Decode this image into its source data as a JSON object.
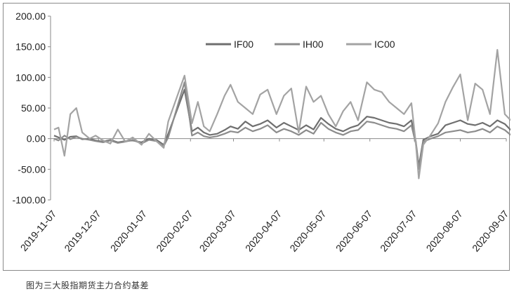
{
  "caption": "图为三大股指期货主力合约基差",
  "chart_data": {
    "type": "line",
    "title": "",
    "xlabel": "",
    "ylabel": "",
    "ylim": [
      -100,
      200
    ],
    "y_ticks": [
      "200.00",
      "150.00",
      "100.00",
      "50.00",
      "0.00",
      "-50.00",
      "-100.00"
    ],
    "x_ticks": [
      "2019-11-07",
      "2019-12-07",
      "2020-01-07",
      "2020-02-07",
      "2020-03-07",
      "2020-04-07",
      "2020-05-07",
      "2020-06-07",
      "2020-07-07",
      "2020-08-07",
      "2020-09-07"
    ],
    "grid": false,
    "legend_position": "top-center",
    "colors": {
      "IF00": "#6f6f6f",
      "IH00": "#8c8c8c",
      "IC00": "#a3a3a3",
      "axis": "#8a8a8a",
      "text": "#222222"
    },
    "series": [
      {
        "name": "IF00",
        "x": [
          "2019-11-07",
          "2019-11-10",
          "2019-11-14",
          "2019-11-18",
          "2019-11-22",
          "2019-11-26",
          "2019-12-01",
          "2019-12-05",
          "2019-12-10",
          "2019-12-15",
          "2019-12-20",
          "2019-12-25",
          "2019-12-30",
          "2020-01-05",
          "2020-01-10",
          "2020-01-15",
          "2020-01-20",
          "2020-01-23",
          "2020-02-03",
          "2020-02-08",
          "2020-02-12",
          "2020-02-16",
          "2020-02-20",
          "2020-02-25",
          "2020-03-01",
          "2020-03-05",
          "2020-03-10",
          "2020-03-15",
          "2020-03-20",
          "2020-03-25",
          "2020-03-30",
          "2020-04-05",
          "2020-04-10",
          "2020-04-15",
          "2020-04-20",
          "2020-04-25",
          "2020-04-30",
          "2020-05-05",
          "2020-05-10",
          "2020-05-15",
          "2020-05-20",
          "2020-05-25",
          "2020-05-30",
          "2020-06-05",
          "2020-06-10",
          "2020-06-15",
          "2020-06-20",
          "2020-06-25",
          "2020-06-30",
          "2020-07-05",
          "2020-07-08",
          "2020-07-10",
          "2020-07-13",
          "2020-07-18",
          "2020-07-23",
          "2020-07-28",
          "2020-08-02",
          "2020-08-07",
          "2020-08-12",
          "2020-08-17",
          "2020-08-22",
          "2020-08-27",
          "2020-09-01",
          "2020-09-06",
          "2020-09-10"
        ],
        "values": [
          5,
          2,
          -2,
          3,
          4,
          -1,
          0,
          -3,
          -5,
          -2,
          -6,
          -4,
          -3,
          -6,
          0,
          -2,
          -10,
          8,
          80,
          12,
          18,
          10,
          6,
          8,
          14,
          20,
          16,
          28,
          20,
          24,
          30,
          18,
          26,
          20,
          14,
          22,
          15,
          34,
          24,
          16,
          12,
          18,
          22,
          36,
          34,
          30,
          26,
          24,
          20,
          30,
          -5,
          -45,
          -2,
          4,
          8,
          22,
          26,
          30,
          24,
          22,
          26,
          20,
          30,
          24,
          14
        ]
      },
      {
        "name": "IH00",
        "x": [
          "2019-11-07",
          "2019-11-10",
          "2019-11-14",
          "2019-11-18",
          "2019-11-22",
          "2019-11-26",
          "2019-12-01",
          "2019-12-05",
          "2019-12-10",
          "2019-12-15",
          "2019-12-20",
          "2019-12-25",
          "2019-12-30",
          "2020-01-05",
          "2020-01-10",
          "2020-01-15",
          "2020-01-20",
          "2020-01-23",
          "2020-02-03",
          "2020-02-08",
          "2020-02-12",
          "2020-02-16",
          "2020-02-20",
          "2020-02-25",
          "2020-03-01",
          "2020-03-05",
          "2020-03-10",
          "2020-03-15",
          "2020-03-20",
          "2020-03-25",
          "2020-03-30",
          "2020-04-05",
          "2020-04-10",
          "2020-04-15",
          "2020-04-20",
          "2020-04-25",
          "2020-04-30",
          "2020-05-05",
          "2020-05-10",
          "2020-05-15",
          "2020-05-20",
          "2020-05-25",
          "2020-05-30",
          "2020-06-05",
          "2020-06-10",
          "2020-06-15",
          "2020-06-20",
          "2020-06-25",
          "2020-06-30",
          "2020-07-05",
          "2020-07-08",
          "2020-07-10",
          "2020-07-13",
          "2020-07-18",
          "2020-07-23",
          "2020-07-28",
          "2020-08-02",
          "2020-08-07",
          "2020-08-12",
          "2020-08-17",
          "2020-08-22",
          "2020-08-27",
          "2020-09-01",
          "2020-09-06",
          "2020-09-10"
        ],
        "values": [
          0,
          -3,
          5,
          -1,
          3,
          0,
          -2,
          -4,
          -6,
          -3,
          -7,
          -5,
          -2,
          -8,
          -2,
          -4,
          -12,
          2,
          92,
          5,
          10,
          4,
          2,
          4,
          8,
          12,
          10,
          18,
          12,
          16,
          22,
          10,
          16,
          12,
          6,
          14,
          8,
          26,
          16,
          10,
          6,
          12,
          14,
          28,
          26,
          22,
          18,
          16,
          12,
          22,
          -8,
          -50,
          -5,
          0,
          4,
          10,
          12,
          14,
          10,
          12,
          16,
          10,
          20,
          14,
          6
        ]
      },
      {
        "name": "IC00",
        "x": [
          "2019-11-07",
          "2019-11-10",
          "2019-11-14",
          "2019-11-18",
          "2019-11-22",
          "2019-11-26",
          "2019-12-01",
          "2019-12-05",
          "2019-12-10",
          "2019-12-15",
          "2019-12-20",
          "2019-12-25",
          "2019-12-30",
          "2020-01-05",
          "2020-01-10",
          "2020-01-15",
          "2020-01-20",
          "2020-01-23",
          "2020-02-03",
          "2020-02-08",
          "2020-02-12",
          "2020-02-16",
          "2020-02-20",
          "2020-02-25",
          "2020-03-01",
          "2020-03-05",
          "2020-03-10",
          "2020-03-15",
          "2020-03-20",
          "2020-03-25",
          "2020-03-30",
          "2020-04-05",
          "2020-04-10",
          "2020-04-15",
          "2020-04-20",
          "2020-04-25",
          "2020-04-30",
          "2020-05-05",
          "2020-05-10",
          "2020-05-15",
          "2020-05-20",
          "2020-05-25",
          "2020-05-30",
          "2020-06-05",
          "2020-06-10",
          "2020-06-15",
          "2020-06-20",
          "2020-06-25",
          "2020-06-30",
          "2020-07-05",
          "2020-07-08",
          "2020-07-10",
          "2020-07-13",
          "2020-07-18",
          "2020-07-23",
          "2020-07-28",
          "2020-08-02",
          "2020-08-07",
          "2020-08-12",
          "2020-08-17",
          "2020-08-22",
          "2020-08-27",
          "2020-09-01",
          "2020-09-06",
          "2020-09-10"
        ],
        "values": [
          15,
          18,
          -28,
          40,
          50,
          10,
          0,
          5,
          -3,
          -8,
          15,
          -5,
          2,
          -10,
          8,
          -4,
          -15,
          28,
          103,
          25,
          60,
          20,
          12,
          40,
          70,
          88,
          60,
          50,
          40,
          72,
          80,
          40,
          70,
          82,
          10,
          85,
          60,
          70,
          40,
          20,
          45,
          60,
          30,
          92,
          80,
          76,
          60,
          50,
          40,
          58,
          -8,
          -65,
          -10,
          6,
          25,
          60,
          84,
          105,
          30,
          90,
          80,
          40,
          145,
          40,
          30
        ]
      }
    ]
  }
}
